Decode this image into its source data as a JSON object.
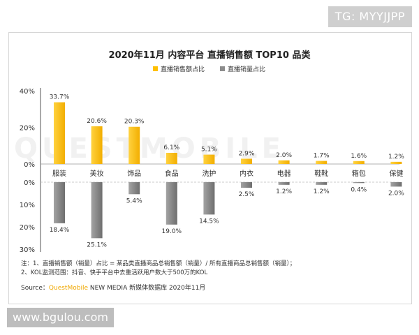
{
  "watermark_top": "TG: MYYJJPP",
  "watermark_bottom": "www.bgulou.com",
  "watermark_brand": "QUESTMOBILE",
  "chart_data": {
    "type": "bar",
    "title": "2020年11月 内容平台 直播销售额 TOP10 品类",
    "categories": [
      "服装",
      "美妆",
      "饰品",
      "食品",
      "洗护",
      "内衣",
      "电器",
      "鞋靴",
      "箱包",
      "保健"
    ],
    "series": [
      {
        "name": "直播销售额占比",
        "values": [
          33.7,
          20.6,
          20.3,
          6.1,
          5.1,
          2.9,
          2.0,
          1.7,
          1.6,
          1.2
        ],
        "color": "#FFC000"
      },
      {
        "name": "直播销量占比",
        "values": [
          18.4,
          25.1,
          5.4,
          19.0,
          14.5,
          2.5,
          1.2,
          1.2,
          0.4,
          2.0
        ],
        "color": "#8C8C8C"
      }
    ],
    "top_axis": {
      "ticks": [
        "0%",
        "20%",
        "40%"
      ],
      "ylim": [
        0,
        40
      ]
    },
    "bottom_axis": {
      "ticks": [
        "0%",
        "10%",
        "20%",
        "30%"
      ],
      "ylim": [
        0,
        30
      ]
    },
    "value_suffix": "%"
  },
  "footnotes": [
    "注：1、直播销售额（销量）占比 = 某品类直播商品总销售额（销量）/ 所有直播商品总销售额（销量）；",
    "2、KOL监测范围：抖音、快手平台中去重活跃用户数大于500万的KOL"
  ],
  "source": {
    "prefix": "Source：",
    "brand": "QuestMobile",
    "rest": " NEW MEDIA 新媒体数据库 2020年11月"
  }
}
